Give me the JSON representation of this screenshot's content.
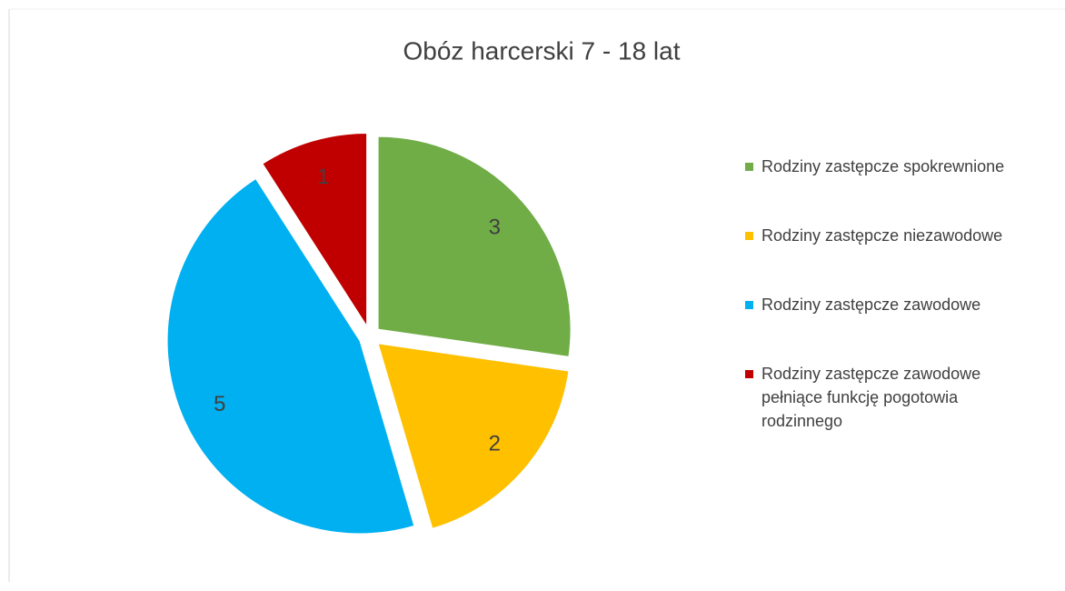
{
  "chart_data": {
    "type": "pie",
    "title": "Obóz harcerski 7 - 18 lat",
    "categories": [
      "Rodziny zastępcze spokrewnione",
      "Rodziny zastępcze niezawodowe",
      "Rodziny zastępcze zawodowe",
      "Rodziny zastępcze zawodowe pełniące funkcję pogotowia rodzinnego"
    ],
    "values": [
      3,
      2,
      5,
      1
    ],
    "colors": [
      "#70ad47",
      "#ffc000",
      "#00b0f0",
      "#c00000"
    ],
    "legend": "right"
  }
}
